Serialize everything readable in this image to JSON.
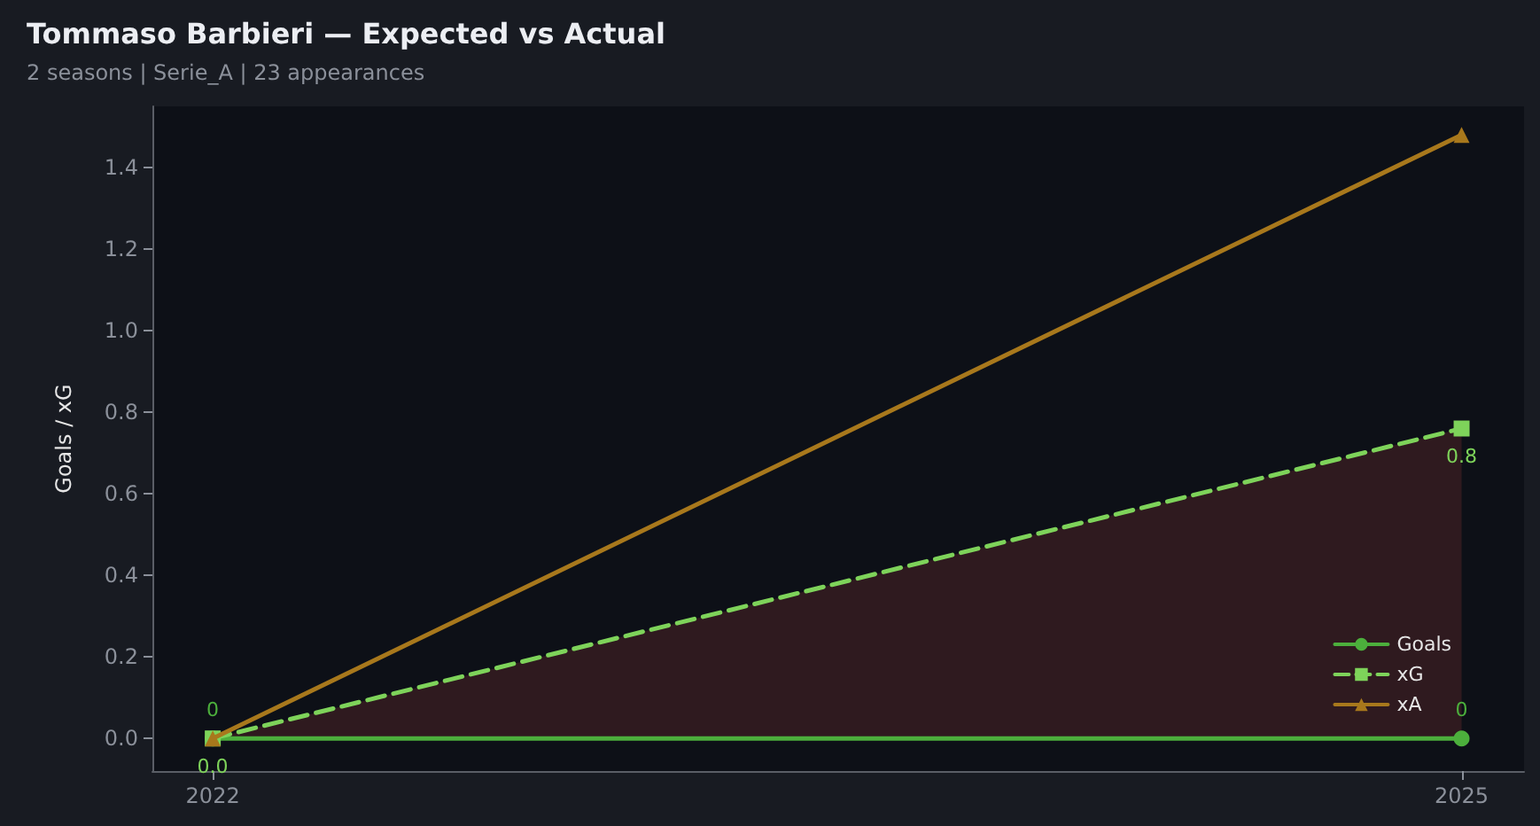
{
  "chart_data": {
    "type": "line",
    "title": "Tommaso Barbieri — Expected vs Actual",
    "subtitle": "2 seasons | Serie_A | 23 appearances",
    "ylabel": "Goals / xG",
    "x": [
      2022,
      2025
    ],
    "xlim": [
      2021.855,
      2025.15
    ],
    "xticks": [
      2022,
      2025
    ],
    "ylim": [
      -0.08,
      1.55
    ],
    "yticks": [
      {
        "value": 0,
        "label": "0.0"
      },
      0.2,
      0.4,
      0.6,
      0.8,
      {
        "value": 1,
        "label": "1.0"
      },
      1.2,
      1.4
    ],
    "series": [
      {
        "name": "Goals",
        "color": "#4caf3c",
        "values": [
          0,
          0
        ],
        "marker": "circle",
        "line_style": "solid",
        "value_labels": [
          "0",
          "0"
        ]
      },
      {
        "name": "xG",
        "color": "#7ed35a",
        "values": [
          0,
          0.76
        ],
        "marker": "square",
        "line_style": "dashed",
        "value_labels": [
          "0.0",
          "0.8"
        ],
        "lower": [
          0,
          0
        ],
        "upper": [
          0,
          0.76
        ]
      },
      {
        "name": "xA",
        "color": "#a8781c",
        "values": [
          0,
          1.48
        ],
        "marker": "triangle",
        "line_style": "solid"
      }
    ],
    "grid": false,
    "legend": "bottom right"
  }
}
